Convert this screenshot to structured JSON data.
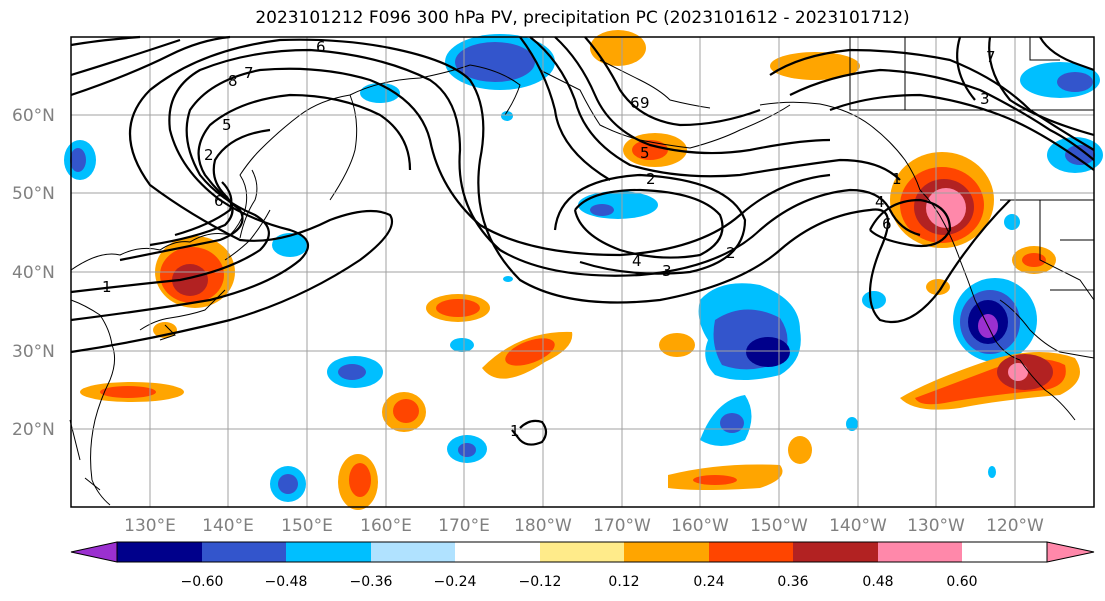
{
  "title": "2023101212 F096 300 hPa PV, precipitation PC (2023101612 - 2023101712)",
  "map": {
    "lat_labels": [
      "60°N",
      "50°N",
      "40°N",
      "30°N",
      "20°N"
    ],
    "lon_labels": [
      "130°E",
      "140°E",
      "150°E",
      "160°E",
      "170°E",
      "180°W",
      "170°W",
      "160°W",
      "150°W",
      "140°W",
      "130°W",
      "120°W"
    ],
    "contour_labels": [
      "6",
      "8",
      "7",
      "5",
      "6",
      "1",
      "2",
      "6",
      "9",
      "1",
      "5",
      "2",
      "3",
      "4",
      "2",
      "1",
      "6",
      "4",
      "3",
      "7"
    ]
  },
  "colorbar": {
    "tick_labels": [
      "−0.60",
      "−0.48",
      "−0.36",
      "−0.24",
      "−0.12",
      "0.12",
      "0.24",
      "0.36",
      "0.48",
      "0.60"
    ],
    "colors": [
      "#9b30d0",
      "#00008b",
      "#3355cc",
      "#00bfff",
      "#b0e2ff",
      "#ffffff",
      "#ffeb8a",
      "#ffa500",
      "#ff4500",
      "#b22222",
      "#ff88aa"
    ]
  }
}
